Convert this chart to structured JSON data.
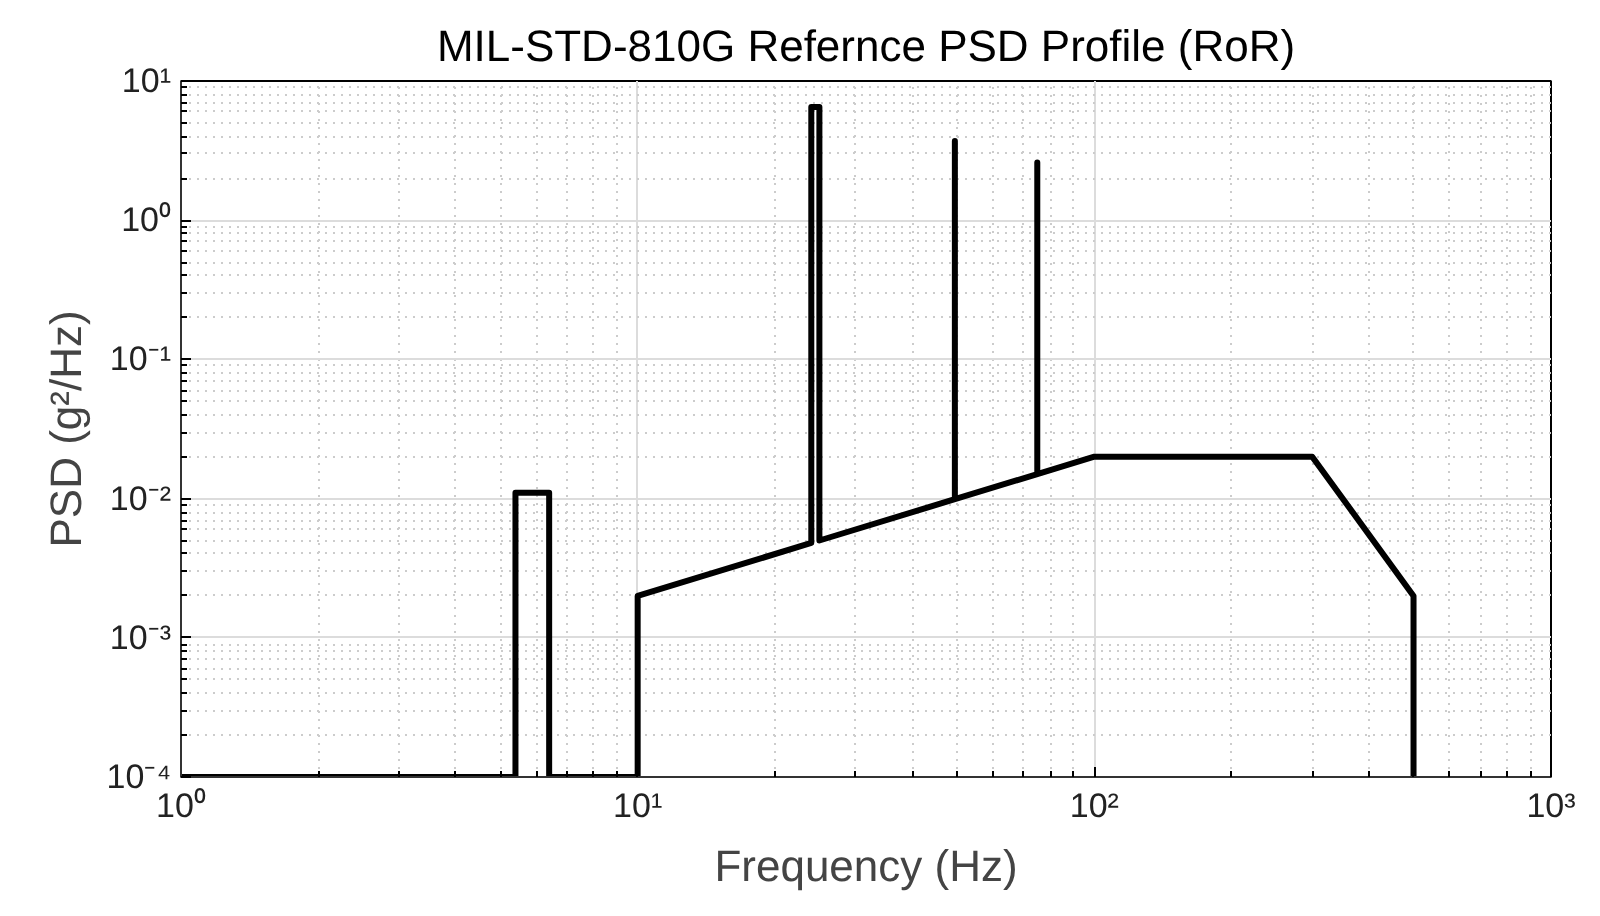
{
  "chart_data": {
    "type": "line",
    "title": "MIL-STD-810G Refernce PSD Profile (RoR)",
    "xlabel": "Frequency (Hz)",
    "ylabel": "PSD (g²/Hz)",
    "log": "xy",
    "x": [
      1,
      5.4,
      5.4,
      6.4,
      6.4,
      10,
      10,
      24,
      24,
      25,
      25,
      49.5,
      49.5,
      49.5,
      75,
      75,
      75,
      100,
      300,
      500,
      500
    ],
    "series": [
      {
        "color": "#000000",
        "values": [
          0.0001,
          0.0001,
          0.011,
          0.011,
          0.0001,
          0.0001,
          0.002,
          0.0048,
          6.5,
          6.5,
          0.005,
          0.0099,
          3.7,
          0.0099,
          0.015,
          2.6,
          0.015,
          0.02,
          0.02,
          0.002,
          0.0001
        ]
      }
    ],
    "xlim": [
      1,
      1000
    ],
    "ylim": [
      0.0001,
      10
    ],
    "xticks": [
      {
        "value": 1,
        "label": "10⁰"
      },
      {
        "value": 10,
        "label": "10¹"
      },
      {
        "value": 100,
        "label": "10²"
      },
      {
        "value": 1000,
        "label": "10³"
      }
    ],
    "yticks": [
      {
        "value": 0.0001,
        "label": "10⁻⁴"
      },
      {
        "value": 0.001,
        "label": "10⁻³"
      },
      {
        "value": 0.01,
        "label": "10⁻²"
      },
      {
        "value": 0.1,
        "label": "10⁻¹"
      },
      {
        "value": 1,
        "label": "10⁰"
      },
      {
        "value": 10,
        "label": "10¹"
      }
    ],
    "grid": true,
    "line_style": "solid"
  }
}
